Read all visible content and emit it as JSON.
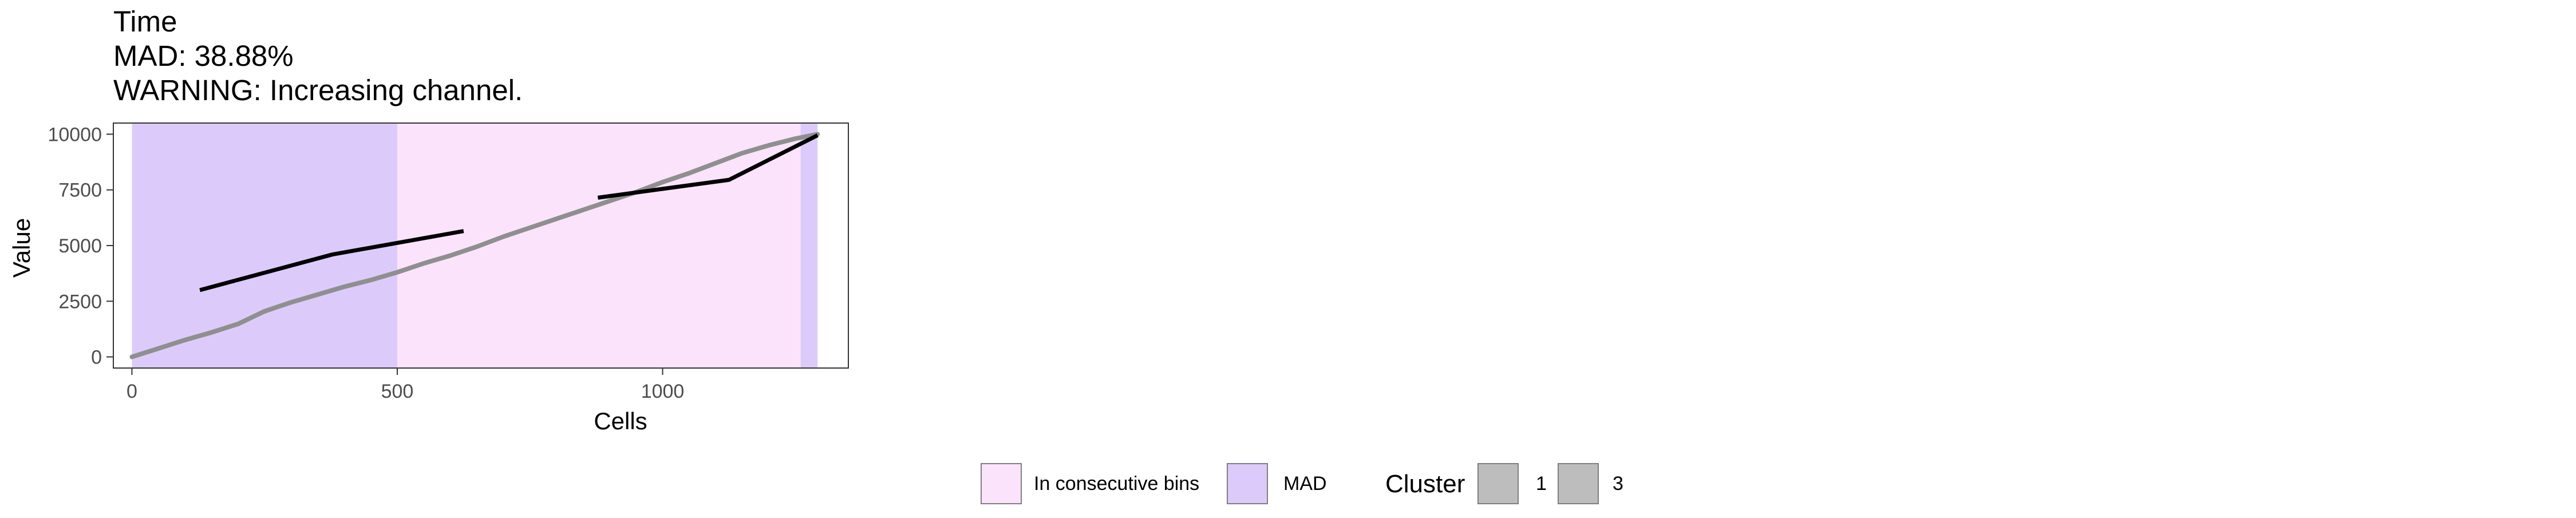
{
  "chart_data": {
    "type": "line",
    "title_lines": [
      "Time",
      "MAD: 38.88%",
      "WARNING: Increasing channel."
    ],
    "xlabel": "Cells",
    "ylabel": "Value",
    "xlim": [
      -35,
      1350
    ],
    "ylim": [
      -500,
      10500
    ],
    "x_ticks": [
      0,
      500,
      1000
    ],
    "y_ticks": [
      0,
      2500,
      5000,
      7500,
      10000
    ],
    "x_tick_labels": [
      "0",
      "500",
      "1000"
    ],
    "y_tick_labels": [
      "0",
      "2500",
      "5000",
      "7500",
      "10000"
    ],
    "grid": false,
    "regions": [
      {
        "category": "in_consecutive_bins",
        "x0": 0,
        "x1": 1260
      },
      {
        "category": "mad",
        "x0": 0,
        "x1": 500
      },
      {
        "category": "mad",
        "x0": 1260,
        "x1": 1292
      }
    ],
    "background_series": {
      "x": [
        0,
        50,
        100,
        150,
        200,
        250,
        300,
        350,
        400,
        450,
        500,
        550,
        600,
        650,
        700,
        750,
        800,
        850,
        900,
        950,
        1000,
        1050,
        1100,
        1150,
        1200,
        1250,
        1292
      ],
      "y": [
        0,
        380,
        760,
        1100,
        1480,
        2050,
        2450,
        2800,
        3150,
        3450,
        3800,
        4200,
        4550,
        4950,
        5400,
        5800,
        6200,
        6600,
        7000,
        7400,
        7850,
        8250,
        8700,
        9150,
        9500,
        9800,
        10000
      ],
      "color": "#8f8f8f"
    },
    "series": [
      {
        "cluster": "1",
        "x": [
          128,
          378,
          625
        ],
        "y": [
          3000,
          4600,
          5650
        ],
        "color": "#000000"
      },
      {
        "cluster": "3",
        "x": [
          878,
          1125,
          1292
        ],
        "y": [
          7150,
          7950,
          9950
        ],
        "color": "#000000"
      }
    ],
    "legend": {
      "placement": "bottom",
      "fill_items": [
        {
          "label": "In consecutive bins",
          "color": "#fce3fc"
        },
        {
          "label": "MAD",
          "color": "#dccbfa"
        }
      ],
      "cluster_title": "Cluster",
      "cluster_items": [
        {
          "label": "1",
          "color": "#bdbdbd"
        },
        {
          "label": "3",
          "color": "#bdbdbd"
        }
      ]
    }
  }
}
